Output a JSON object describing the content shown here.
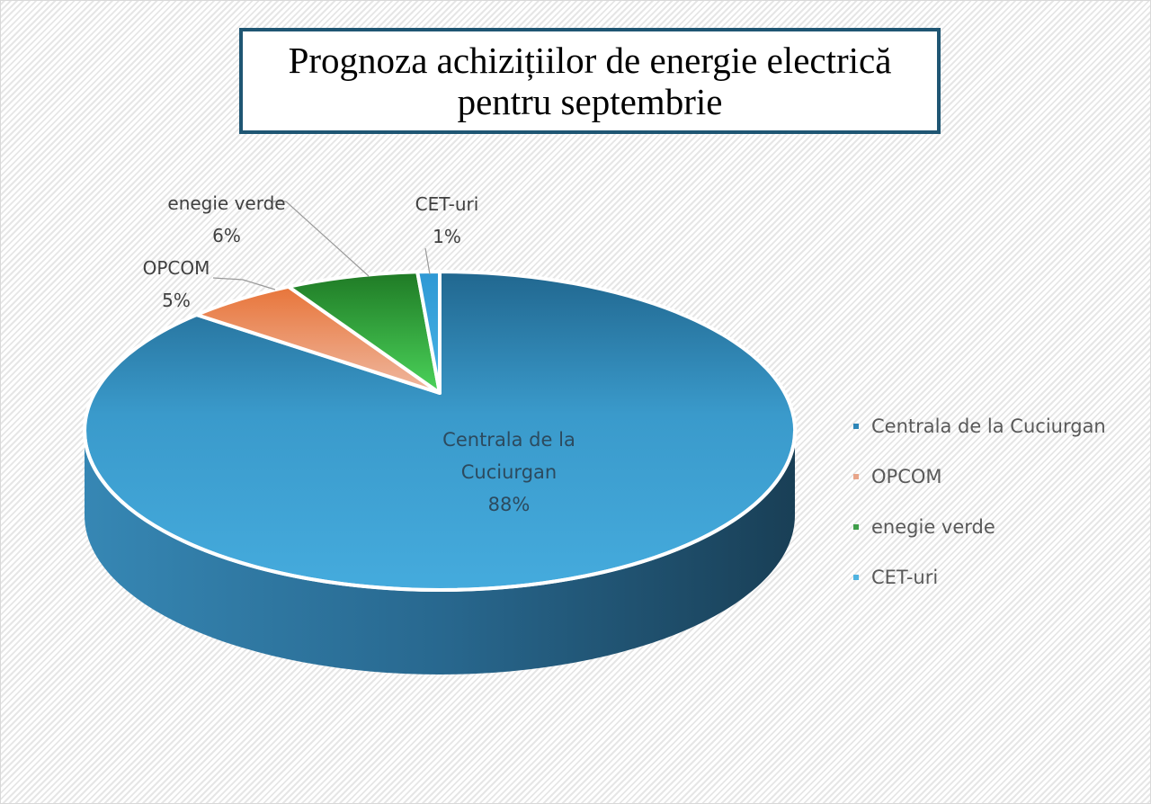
{
  "title": {
    "line1": "Prognoza achizițiilor de energie electrică",
    "line2": "pentru septembrie"
  },
  "data_labels": [
    {
      "name": "Centrala de la",
      "name2": "Cuciurgan",
      "pct": "88%"
    },
    {
      "name": "OPCOM",
      "pct": "5%"
    },
    {
      "name": "enegie verde",
      "pct": "6%"
    },
    {
      "name": "CET-uri",
      "pct": "1%"
    }
  ],
  "legend": [
    {
      "label": "Centrala de la Cuciurgan",
      "color": "#2e86b8"
    },
    {
      "label": "OPCOM",
      "color": "#e8a58a"
    },
    {
      "label": "enegie verde",
      "color": "#3f9e4a"
    },
    {
      "label": "CET-uri",
      "color": "#4fb3e0"
    }
  ],
  "chart_data": {
    "type": "pie",
    "title": "Prognoza achizițiilor de energie electrică pentru septembrie",
    "style": "3d",
    "categories": [
      "Centrala de la Cuciurgan",
      "OPCOM",
      "enegie verde",
      "CET-uri"
    ],
    "values": [
      88,
      5,
      6,
      1
    ],
    "unit": "%",
    "colors": [
      "#2e86b8",
      "#ea7d46",
      "#2f9a3a",
      "#2ea3dc"
    ],
    "legend_position": "right",
    "data_labels": [
      "Centrala de la Cuciurgan 88%",
      "OPCOM 5%",
      "enegie verde 6%",
      "CET-uri 1%"
    ]
  }
}
